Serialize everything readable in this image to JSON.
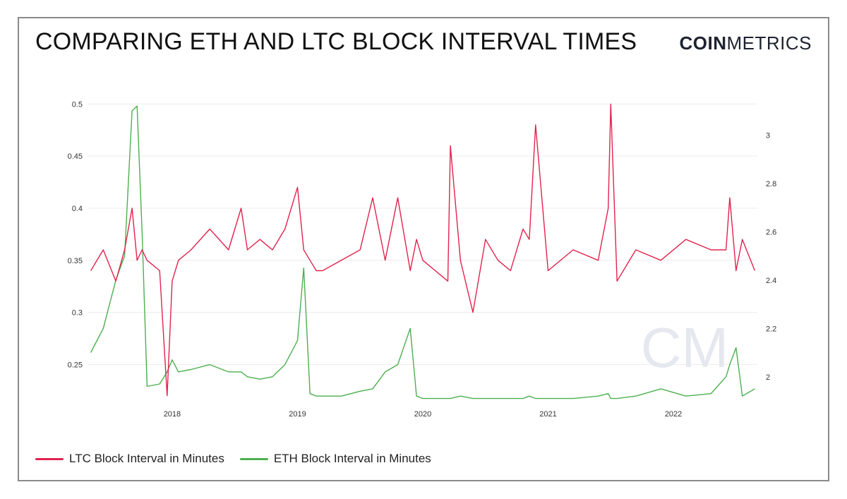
{
  "header": {
    "title": "COMPARING ETH AND LTC BLOCK INTERVAL TIMES",
    "brand_bold": "COIN",
    "brand_light": "METRICS"
  },
  "watermark": "CM",
  "colors": {
    "ltc": "#e0234e",
    "eth": "#4caf50",
    "grid": "#ececec",
    "watermark": "#e6e8ef"
  },
  "chart_data": {
    "type": "line",
    "x": [
      2017.35,
      2017.45,
      2017.55,
      2017.62,
      2017.68,
      2017.72,
      2017.76,
      2017.8,
      2017.9,
      2017.96,
      2018.0,
      2018.05,
      2018.15,
      2018.3,
      2018.45,
      2018.55,
      2018.6,
      2018.7,
      2018.8,
      2018.9,
      2019.0,
      2019.05,
      2019.1,
      2019.15,
      2019.2,
      2019.35,
      2019.5,
      2019.6,
      2019.7,
      2019.8,
      2019.9,
      2019.95,
      2020.0,
      2020.2,
      2020.22,
      2020.3,
      2020.4,
      2020.5,
      2020.6,
      2020.7,
      2020.8,
      2020.85,
      2020.9,
      2021.0,
      2021.2,
      2021.4,
      2021.48,
      2021.5,
      2021.55,
      2021.7,
      2021.9,
      2022.1,
      2022.3,
      2022.42,
      2022.45,
      2022.5,
      2022.55,
      2022.65
    ],
    "series": [
      {
        "name": "LTC Block Interval in Minutes",
        "axis": "left",
        "values": [
          0.34,
          0.36,
          0.33,
          0.36,
          0.4,
          0.35,
          0.36,
          0.35,
          0.34,
          0.22,
          0.33,
          0.35,
          0.36,
          0.38,
          0.36,
          0.4,
          0.36,
          0.37,
          0.36,
          0.38,
          0.42,
          0.36,
          0.35,
          0.34,
          0.34,
          0.35,
          0.36,
          0.41,
          0.35,
          0.41,
          0.34,
          0.37,
          0.35,
          0.33,
          0.46,
          0.35,
          0.3,
          0.37,
          0.35,
          0.34,
          0.38,
          0.37,
          0.48,
          0.34,
          0.36,
          0.35,
          0.4,
          0.5,
          0.33,
          0.36,
          0.35,
          0.37,
          0.36,
          0.36,
          0.41,
          0.34,
          0.37,
          0.34
        ]
      },
      {
        "name": "ETH Block Interval in Minutes",
        "axis": "right",
        "values": [
          2.1,
          2.2,
          2.4,
          2.5,
          3.1,
          3.12,
          2.6,
          1.96,
          1.97,
          2.02,
          2.07,
          2.02,
          2.03,
          2.05,
          2.02,
          2.02,
          2.0,
          1.99,
          2.0,
          2.05,
          2.15,
          2.45,
          1.93,
          1.92,
          1.92,
          1.92,
          1.94,
          1.95,
          2.02,
          2.05,
          2.2,
          1.92,
          1.91,
          1.91,
          1.91,
          1.92,
          1.91,
          1.91,
          1.91,
          1.91,
          1.91,
          1.92,
          1.91,
          1.91,
          1.91,
          1.92,
          1.93,
          1.91,
          1.91,
          1.92,
          1.95,
          1.92,
          1.93,
          2.0,
          2.05,
          2.12,
          1.92,
          1.95
        ]
      }
    ],
    "xticks": [
      "2018",
      "2019",
      "2020",
      "2021",
      "2022"
    ],
    "xtick_values": [
      2018,
      2019,
      2020,
      2021,
      2022
    ],
    "yticks_left": [
      "0.25",
      "0.3",
      "0.35",
      "0.4",
      "0.45",
      "0.5"
    ],
    "ytick_left_values": [
      0.25,
      0.3,
      0.35,
      0.4,
      0.45,
      0.5
    ],
    "yticks_right": [
      "2",
      "2.2",
      "2.4",
      "2.6",
      "2.8",
      "3"
    ],
    "ytick_right_values": [
      2,
      2.2,
      2.4,
      2.6,
      2.8,
      3
    ],
    "xlim": [
      2017.33,
      2022.67
    ],
    "ylim_left": [
      0.215,
      0.505
    ],
    "ylim_right": [
      1.9,
      3.15
    ],
    "grid": "horizontal",
    "legend_position": "bottom-left"
  }
}
